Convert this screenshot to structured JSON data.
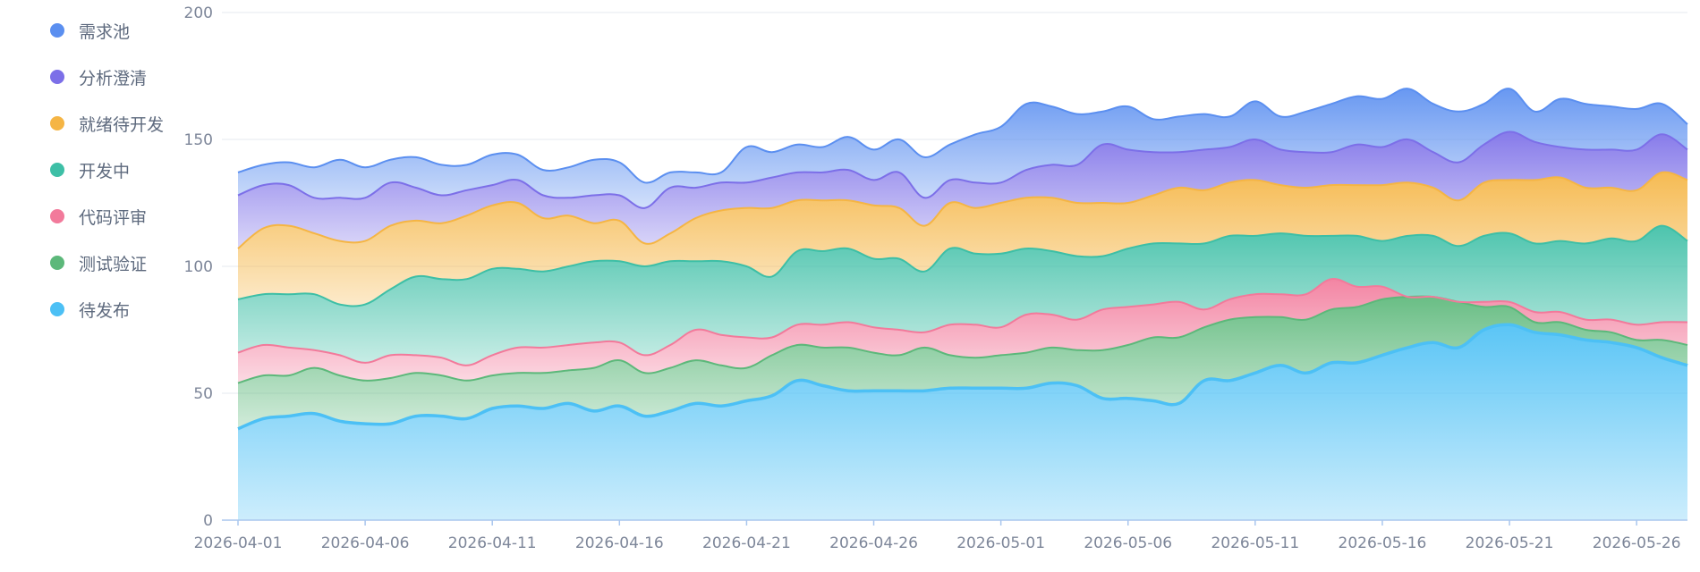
{
  "chart_data": {
    "type": "area",
    "stacked": true,
    "grid": true,
    "legend_position": "left",
    "ylim": [
      0,
      200
    ],
    "yticks": [
      0,
      50,
      100,
      150,
      200
    ],
    "xticks": [
      "2026-04-01",
      "2026-04-06",
      "2026-04-11",
      "2026-04-16",
      "2026-04-21",
      "2026-04-26",
      "2026-05-01",
      "2026-05-06",
      "2026-05-11",
      "2026-05-16",
      "2026-05-21",
      "2026-05-26"
    ],
    "x": [
      "2026-04-01",
      "2026-04-02",
      "2026-04-03",
      "2026-04-04",
      "2026-04-05",
      "2026-04-06",
      "2026-04-07",
      "2026-04-08",
      "2026-04-09",
      "2026-04-10",
      "2026-04-11",
      "2026-04-12",
      "2026-04-13",
      "2026-04-14",
      "2026-04-15",
      "2026-04-16",
      "2026-04-17",
      "2026-04-18",
      "2026-04-19",
      "2026-04-20",
      "2026-04-21",
      "2026-04-22",
      "2026-04-23",
      "2026-04-24",
      "2026-04-25",
      "2026-04-26",
      "2026-04-27",
      "2026-04-28",
      "2026-04-29",
      "2026-04-30",
      "2026-05-01",
      "2026-05-02",
      "2026-05-03",
      "2026-05-04",
      "2026-05-05",
      "2026-05-06",
      "2026-05-07",
      "2026-05-08",
      "2026-05-09",
      "2026-05-10",
      "2026-05-11",
      "2026-05-12",
      "2026-05-13",
      "2026-05-14",
      "2026-05-15",
      "2026-05-16",
      "2026-05-17",
      "2026-05-18",
      "2026-05-19",
      "2026-05-20",
      "2026-05-21",
      "2026-05-22",
      "2026-05-23",
      "2026-05-24",
      "2026-05-25",
      "2026-05-26",
      "2026-05-27",
      "2026-05-28"
    ],
    "series": [
      {
        "name": "待发布",
        "color": "#4cc0f5",
        "values": [
          36,
          40,
          41,
          42,
          39,
          38,
          38,
          41,
          41,
          40,
          44,
          45,
          44,
          46,
          43,
          45,
          41,
          43,
          46,
          45,
          47,
          49,
          55,
          53,
          51,
          51,
          51,
          51,
          52,
          52,
          52,
          52,
          54,
          53,
          48,
          48,
          47,
          46,
          55,
          55,
          58,
          61,
          58,
          62,
          62,
          65,
          68,
          70,
          68,
          75,
          77,
          74,
          73,
          71,
          70,
          68,
          64,
          61
        ]
      },
      {
        "name": "测试验证",
        "color": "#5cb87a",
        "values": [
          18,
          17,
          16,
          18,
          18,
          17,
          18,
          17,
          16,
          15,
          13,
          13,
          14,
          13,
          17,
          18,
          17,
          17,
          17,
          16,
          13,
          16,
          14,
          15,
          17,
          15,
          14,
          17,
          13,
          12,
          13,
          14,
          14,
          14,
          19,
          21,
          25,
          26,
          21,
          24,
          22,
          19,
          21,
          21,
          22,
          22,
          20,
          18,
          18,
          9,
          7,
          4,
          5,
          4,
          4,
          3,
          7,
          8
        ]
      },
      {
        "name": "代码评审",
        "color": "#f27a9b",
        "values": [
          12,
          12,
          11,
          7,
          8,
          7,
          9,
          7,
          7,
          6,
          8,
          10,
          10,
          10,
          10,
          7,
          7,
          9,
          12,
          12,
          12,
          7,
          8,
          9,
          10,
          10,
          10,
          6,
          12,
          13,
          11,
          15,
          13,
          12,
          16,
          15,
          13,
          14,
          7,
          8,
          9,
          9,
          10,
          12,
          8,
          5,
          0,
          0,
          0,
          2,
          2,
          4,
          4,
          4,
          5,
          6,
          7,
          9
        ]
      },
      {
        "name": "开发中",
        "color": "#3dbfa6",
        "values": [
          21,
          20,
          21,
          22,
          20,
          23,
          26,
          31,
          31,
          34,
          34,
          31,
          30,
          31,
          32,
          32,
          35,
          33,
          27,
          29,
          28,
          24,
          29,
          29,
          29,
          27,
          28,
          24,
          30,
          28,
          29,
          26,
          25,
          25,
          21,
          23,
          24,
          23,
          26,
          25,
          23,
          24,
          23,
          17,
          20,
          18,
          24,
          24,
          22,
          26,
          27,
          27,
          28,
          30,
          32,
          33,
          38,
          32
        ]
      },
      {
        "name": "就绪待开发",
        "color": "#f5b544",
        "values": [
          20,
          26,
          27,
          24,
          25,
          25,
          25,
          22,
          22,
          25,
          25,
          26,
          21,
          20,
          15,
          16,
          9,
          11,
          17,
          20,
          23,
          27,
          20,
          20,
          19,
          21,
          20,
          18,
          18,
          18,
          20,
          20,
          21,
          21,
          21,
          18,
          19,
          22,
          21,
          21,
          22,
          19,
          19,
          20,
          20,
          22,
          21,
          19,
          18,
          21,
          21,
          25,
          25,
          22,
          20,
          20,
          21,
          24
        ]
      },
      {
        "name": "分析澄清",
        "color": "#7c6fe8",
        "values": [
          21,
          17,
          16,
          14,
          17,
          17,
          17,
          13,
          11,
          10,
          8,
          9,
          9,
          7,
          11,
          10,
          14,
          18,
          12,
          11,
          10,
          12,
          11,
          11,
          12,
          10,
          14,
          11,
          9,
          10,
          8,
          11,
          13,
          15,
          23,
          21,
          17,
          14,
          16,
          14,
          16,
          14,
          14,
          13,
          16,
          15,
          17,
          14,
          15,
          15,
          19,
          15,
          12,
          15,
          15,
          16,
          15,
          12
        ]
      },
      {
        "name": "需求池",
        "color": "#5b8ff0",
        "values": [
          9,
          8,
          9,
          12,
          15,
          12,
          9,
          12,
          12,
          10,
          12,
          10,
          10,
          12,
          14,
          13,
          10,
          6,
          6,
          4,
          14,
          10,
          11,
          10,
          13,
          12,
          13,
          16,
          14,
          19,
          22,
          26,
          23,
          20,
          13,
          17,
          13,
          14,
          14,
          12,
          15,
          13,
          16,
          19,
          19,
          19,
          20,
          19,
          20,
          16,
          17,
          12,
          19,
          18,
          17,
          16,
          12,
          10
        ]
      }
    ]
  }
}
